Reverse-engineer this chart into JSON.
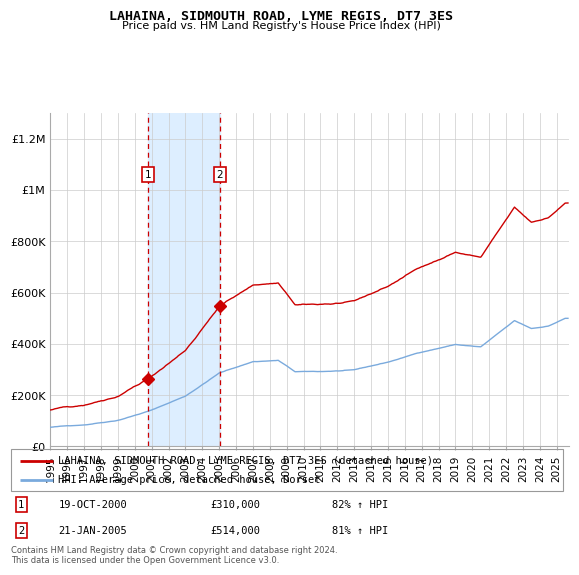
{
  "title": "LAHAINA, SIDMOUTH ROAD, LYME REGIS, DT7 3ES",
  "subtitle": "Price paid vs. HM Land Registry's House Price Index (HPI)",
  "ylabel_ticks": [
    "£0",
    "£200K",
    "£400K",
    "£600K",
    "£800K",
    "£1M",
    "£1.2M"
  ],
  "ytick_values": [
    0,
    200000,
    400000,
    600000,
    800000,
    1000000,
    1200000
  ],
  "ylim": [
    0,
    1300000
  ],
  "xlim_start": 1995.0,
  "xlim_end": 2025.75,
  "transaction1": {
    "date": 2000.8,
    "price": 310000,
    "label": "1",
    "text": "19-OCT-2000",
    "amount": "£310,000",
    "hpi": "82% ↑ HPI"
  },
  "transaction2": {
    "date": 2005.04,
    "price": 514000,
    "label": "2",
    "text": "21-JAN-2005",
    "amount": "£514,000",
    "hpi": "81% ↑ HPI"
  },
  "legend_line1": "LAHAINA, SIDMOUTH ROAD, LYME REGIS, DT7 3ES (detached house)",
  "legend_line2": "HPI: Average price, detached house, Dorset",
  "footnote": "Contains HM Land Registry data © Crown copyright and database right 2024.\nThis data is licensed under the Open Government Licence v3.0.",
  "property_color": "#cc0000",
  "hpi_color": "#7aaadd",
  "bg_highlight_color": "#ddeeff",
  "xtick_years": [
    1995,
    1996,
    1997,
    1998,
    1999,
    2000,
    2001,
    2002,
    2003,
    2004,
    2005,
    2006,
    2007,
    2008,
    2009,
    2010,
    2011,
    2012,
    2013,
    2014,
    2015,
    2016,
    2017,
    2018,
    2019,
    2020,
    2021,
    2022,
    2023,
    2024,
    2025
  ]
}
